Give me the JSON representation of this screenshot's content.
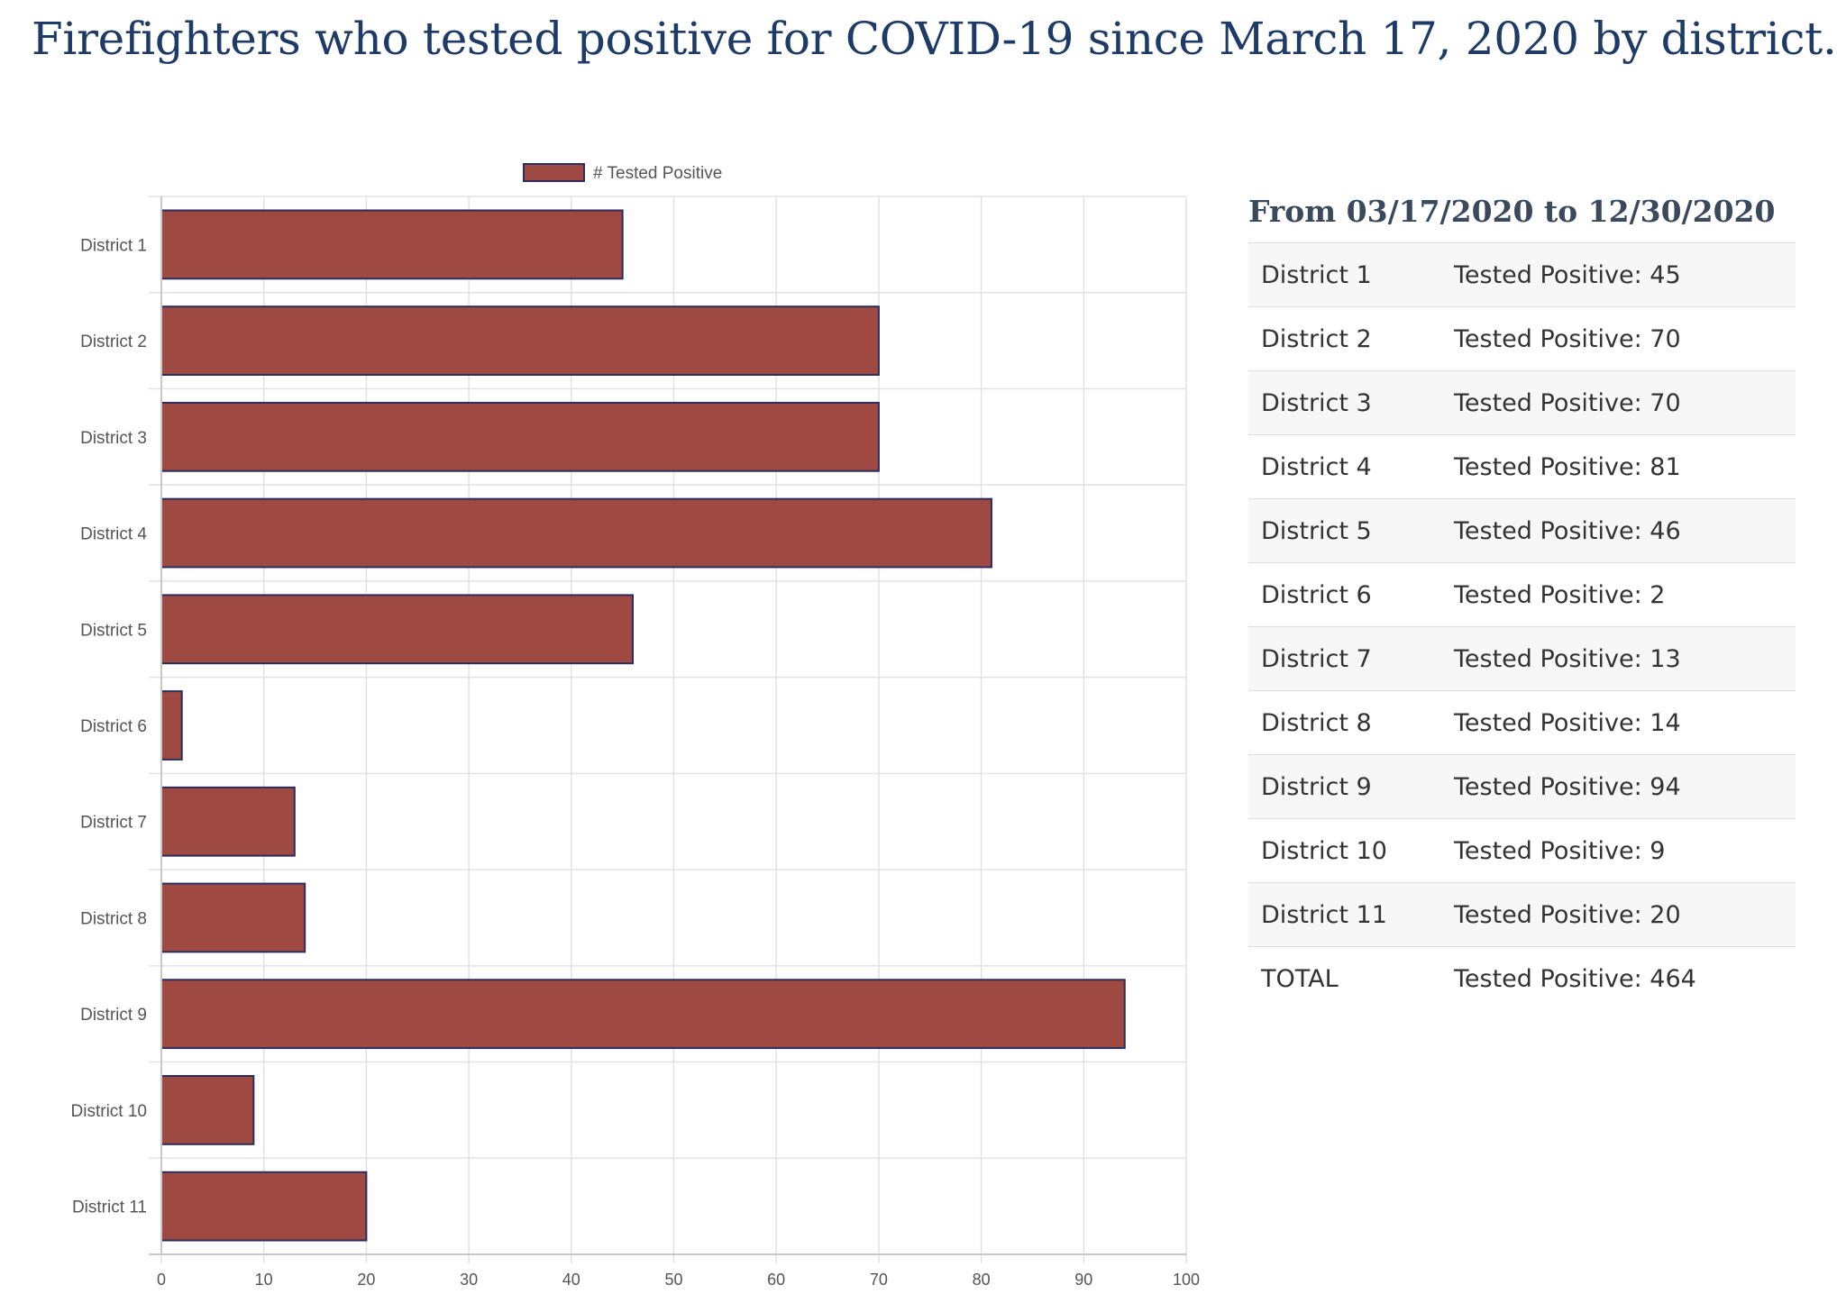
{
  "title": "Firefighters who tested positive for COVID-19 since March 17, 2020 by district.",
  "chart_data": {
    "type": "bar",
    "orientation": "horizontal",
    "categories": [
      "District 1",
      "District 2",
      "District 3",
      "District 4",
      "District 5",
      "District 6",
      "District 7",
      "District 8",
      "District 9",
      "District 10",
      "District 11"
    ],
    "series": [
      {
        "name": "# Tested Positive",
        "values": [
          45,
          70,
          70,
          81,
          46,
          2,
          13,
          14,
          94,
          9,
          20
        ]
      }
    ],
    "xlim": [
      0,
      100
    ],
    "x_ticks": [
      0,
      10,
      20,
      30,
      40,
      50,
      60,
      70,
      80,
      90,
      100
    ],
    "grid": true,
    "legend_position": "top",
    "colors": {
      "bar_fill": "#9e4a42",
      "bar_stroke": "#2c2c5e",
      "grid": "#e2e2e2",
      "axis": "#c8c8c8"
    }
  },
  "summary": {
    "heading": "From 03/17/2020 to 12/30/2020",
    "rows": [
      {
        "label": "District 1",
        "value": "Tested Positive: 45"
      },
      {
        "label": "District 2",
        "value": "Tested Positive: 70"
      },
      {
        "label": "District 3",
        "value": "Tested Positive: 70"
      },
      {
        "label": "District 4",
        "value": "Tested Positive: 81"
      },
      {
        "label": "District 5",
        "value": "Tested Positive: 46"
      },
      {
        "label": "District 6",
        "value": "Tested Positive: 2"
      },
      {
        "label": "District 7",
        "value": "Tested Positive: 13"
      },
      {
        "label": "District 8",
        "value": "Tested Positive: 14"
      },
      {
        "label": "District 9",
        "value": "Tested Positive: 94"
      },
      {
        "label": "District 10",
        "value": "Tested Positive: 9"
      },
      {
        "label": "District 11",
        "value": "Tested Positive: 20"
      },
      {
        "label": "TOTAL",
        "value": "Tested Positive: 464"
      }
    ]
  }
}
